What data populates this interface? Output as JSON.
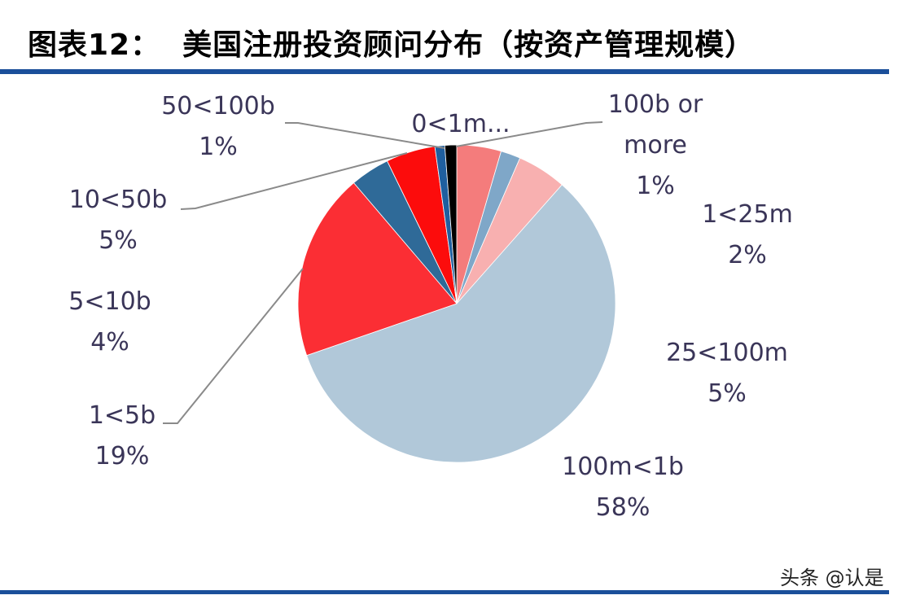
{
  "title": "图表12：  美国注册投资顾问分布（按资产管理规模）",
  "watermark": "头条 @认是",
  "colors": {
    "rule": "#1b4f9a",
    "label_text": "#3a3558"
  },
  "chart_data": {
    "type": "pie",
    "title": "",
    "start": "12 o'clock, clockwise",
    "slices": [
      {
        "label": "0<1m...",
        "pct_label": "",
        "value": 4.5,
        "color": "#f47c7c"
      },
      {
        "label": "1<25m",
        "pct_label": "2%",
        "value": 2,
        "color": "#7fa7c8"
      },
      {
        "label": "25<100m",
        "pct_label": "5%",
        "value": 5,
        "color": "#f8b0b0"
      },
      {
        "label": "100m<1b",
        "pct_label": "58%",
        "value": 58,
        "color": "#b1c8d9"
      },
      {
        "label": "1<5b",
        "pct_label": "19%",
        "value": 19,
        "color": "#fb2e34"
      },
      {
        "label": "5<10b",
        "pct_label": "4%",
        "value": 4,
        "color": "#2f6a98"
      },
      {
        "label": "10<50b",
        "pct_label": "5%",
        "value": 5,
        "color": "#fc0c0c"
      },
      {
        "label": "50<100b",
        "pct_label": "1%",
        "value": 1,
        "color": "#1f5f9f"
      },
      {
        "label": "100b or more",
        "pct_label": "1%",
        "value": 1.2,
        "color": "#000000"
      }
    ]
  }
}
